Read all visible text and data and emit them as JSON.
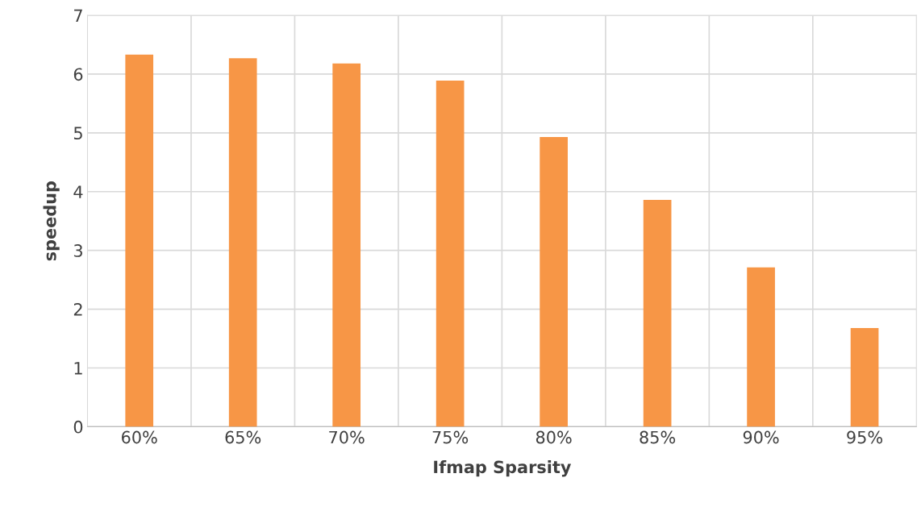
{
  "chart_data": {
    "type": "bar",
    "xlabel": "Ifmap Sparsity",
    "ylabel": "speedup",
    "categories": [
      "60%",
      "65%",
      "70%",
      "75%",
      "80%",
      "85%",
      "90%",
      "95%"
    ],
    "values": [
      6.33,
      6.27,
      6.18,
      5.89,
      4.93,
      3.86,
      2.71,
      1.68
    ],
    "color": "#f79646",
    "ylim": [
      0,
      7
    ],
    "yticks": [
      0,
      1,
      2,
      3,
      4,
      5,
      6,
      7
    ],
    "grid": true
  }
}
